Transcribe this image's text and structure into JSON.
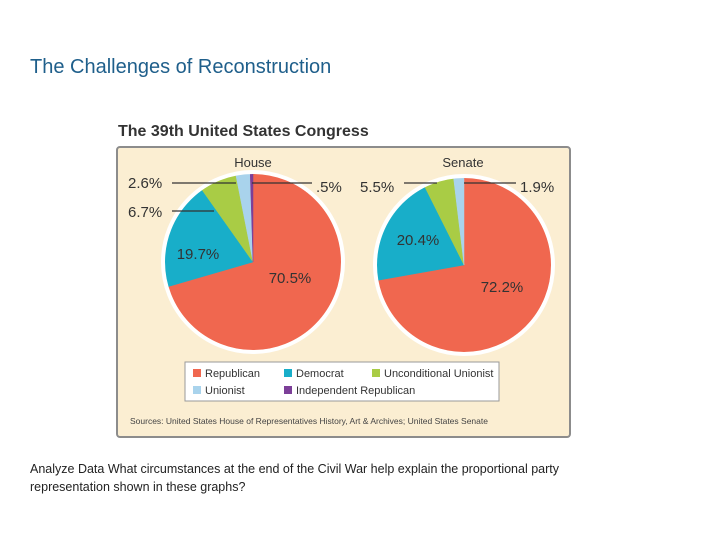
{
  "slide": {
    "title": "The Challenges of Reconstruction",
    "question_prefix": "Analyze Data",
    "question": "What circumstances at the end of the Civil War help explain the proportional party representation shown in these graphs?"
  },
  "colors": {
    "panel_bg": "#fbeed2",
    "panel_border": "#8c8c8c",
    "leader_line": "#333333",
    "Republican": "#f0674f",
    "Democrat": "#18aec9",
    "Unconditional Unionist": "#a9cc45",
    "Unionist": "#a9d3ec",
    "Independent Republican": "#7c3f98"
  },
  "chart_data": {
    "type": "pie",
    "title": "The 39th United States Congress",
    "legend_position": "bottom",
    "legend": [
      "Republican",
      "Democrat",
      "Unconditional Unionist",
      "Unionist",
      "Independent Republican"
    ],
    "charts": [
      {
        "name": "House",
        "slices": [
          {
            "label": "Republican",
            "value": 70.5,
            "display": "70.5%"
          },
          {
            "label": "Democrat",
            "value": 19.7,
            "display": "19.7%"
          },
          {
            "label": "Unconditional Unionist",
            "value": 6.7,
            "display": "6.7%"
          },
          {
            "label": "Unionist",
            "value": 2.6,
            "display": "2.6%"
          },
          {
            "label": "Independent Republican",
            "value": 0.5,
            "display": ".5%"
          }
        ]
      },
      {
        "name": "Senate",
        "slices": [
          {
            "label": "Republican",
            "value": 72.2,
            "display": "72.2%"
          },
          {
            "label": "Democrat",
            "value": 20.4,
            "display": "20.4%"
          },
          {
            "label": "Unconditional Unionist",
            "value": 5.5,
            "display": "5.5%"
          },
          {
            "label": "Unionist",
            "value": 1.9,
            "display": "1.9%"
          }
        ]
      }
    ],
    "source": "Sources: United States House of Representatives History, Art & Archives; United States Senate"
  }
}
